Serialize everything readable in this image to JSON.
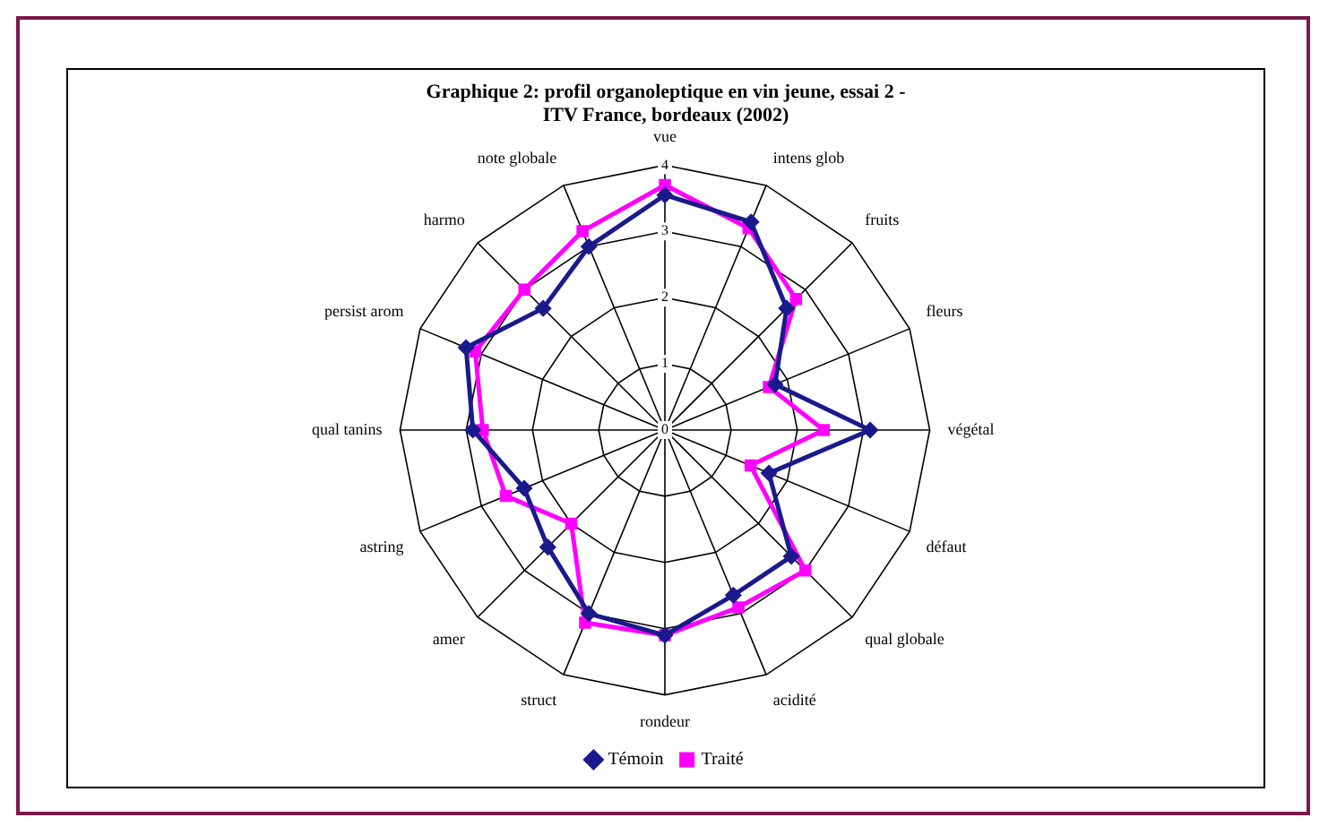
{
  "chart_data": {
    "type": "radar",
    "title": "Graphique 2: profil organoleptique en vin jeune, essai 2 -\nITV France, bordeaux (2002)",
    "categories": [
      "vue",
      "intens glob",
      "fruits",
      "fleurs",
      "végétal",
      "défaut",
      "qual globale",
      "acidité",
      "rondeur",
      "struct",
      "amer",
      "astring",
      "qual tanins",
      "persist arom",
      "harmo",
      "note globale"
    ],
    "series": [
      {
        "name": "Témoin",
        "color": "#1a1a8c",
        "marker": "diamond",
        "values": [
          3.55,
          3.4,
          2.6,
          1.8,
          3.1,
          1.7,
          2.7,
          2.7,
          3.1,
          3.0,
          2.5,
          2.3,
          2.9,
          3.25,
          2.6,
          3.0
        ]
      },
      {
        "name": "Traité",
        "color": "#ff00ff",
        "marker": "square",
        "values": [
          3.7,
          3.3,
          2.8,
          1.7,
          2.4,
          1.4,
          3.0,
          2.9,
          3.1,
          3.15,
          2.0,
          2.6,
          2.75,
          3.1,
          3.0,
          3.25
        ]
      }
    ],
    "ylim": [
      0,
      4
    ],
    "yticks": [
      0,
      1,
      2,
      3,
      4
    ],
    "grid": true,
    "legend": "bottom"
  }
}
